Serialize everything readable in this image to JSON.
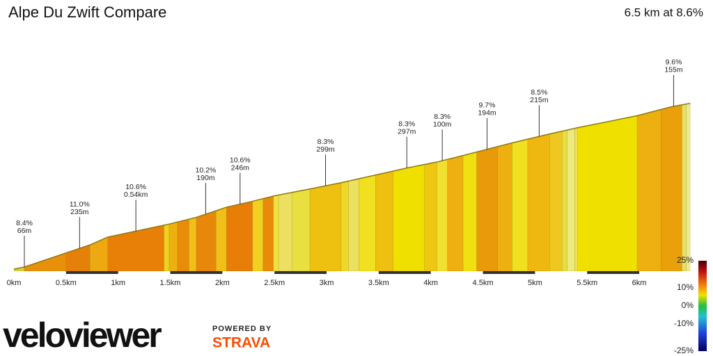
{
  "chart_data": {
    "type": "profile",
    "title": "Alpe Du Zwift Compare",
    "subtitle": "6.5 km at 8.6%",
    "x": [
      0,
      0.1,
      0.73,
      0.9,
      1.47,
      1.74,
      2.04,
      2.28,
      2.5,
      2.84,
      3.14,
      3.77,
      4.07,
      4.31,
      4.78,
      5.14,
      5.41,
      5.98,
      6.31,
      6.45,
      6.49
    ],
    "series": [
      {
        "color": "#8a7a10",
        "values": [
          7,
          14,
          88,
          114,
          156,
          179,
          214,
          233,
          252,
          275,
          296,
          345,
          366,
          387,
          429,
          459,
          480,
          520,
          550,
          559,
          561
        ]
      }
    ],
    "xlim": [
      0,
      6.49
    ],
    "ylim": [
      0,
      600
    ],
    "xticks": [
      {
        "value": 0,
        "label": "0km"
      },
      {
        "value": 0.5,
        "label": "0.5km"
      },
      {
        "value": 1,
        "label": "1km"
      },
      {
        "value": 1.5,
        "label": "1.5km"
      },
      {
        "value": 2,
        "label": "2km"
      },
      {
        "value": 2.5,
        "label": "2.5km"
      },
      {
        "value": 3,
        "label": "3km"
      },
      {
        "value": 3.5,
        "label": "3.5km"
      },
      {
        "value": 4,
        "label": "4km"
      },
      {
        "value": 4.5,
        "label": "4.5km"
      },
      {
        "value": 5,
        "label": "5km"
      },
      {
        "value": 5.5,
        "label": "5.5km"
      },
      {
        "value": 6,
        "label": "6km"
      }
    ],
    "band_edges": [
      0,
      0.1,
      0.5,
      0.73,
      0.9,
      1.44,
      1.49,
      1.57,
      1.68,
      1.75,
      1.94,
      2.04,
      2.29,
      2.39,
      2.49,
      2.54,
      2.67,
      2.84,
      3.14,
      3.21,
      3.31,
      3.47,
      3.64,
      3.94,
      4.06,
      4.16,
      4.31,
      4.44,
      4.64,
      4.78,
      4.93,
      5.14,
      5.26,
      5.31,
      5.38,
      5.41,
      5.98,
      6.21,
      6.41,
      6.45,
      6.49
    ],
    "band_colors": [
      "#d8d040",
      "#e8900a",
      "#e58008",
      "#eea810",
      "#e88008",
      "#f0d020",
      "#eeb010",
      "#e88c0a",
      "#f0c018",
      "#e8880a",
      "#f0c018",
      "#e87d08",
      "#f2d020",
      "#e88a0a",
      "#f0e040",
      "#ece060",
      "#e8e040",
      "#eec010",
      "#f0d828",
      "#ece060",
      "#f0e020",
      "#eec010",
      "#f0e000",
      "#eec810",
      "#f2e030",
      "#eeb010",
      "#f0e010",
      "#e89a0a",
      "#eeb010",
      "#f0e020",
      "#eeb810",
      "#eec820",
      "#eadd40",
      "#eaea80",
      "#eee050",
      "#f0e000",
      "#eeb010",
      "#eaa00a",
      "#e8e060",
      "#eaea90"
    ],
    "annotations": [
      {
        "x": 0.1,
        "lines": [
          "8.4%",
          "66m"
        ]
      },
      {
        "x": 0.63,
        "lines": [
          "11.0%",
          "235m"
        ]
      },
      {
        "x": 1.17,
        "lines": [
          "10.6%",
          "0.54km"
        ]
      },
      {
        "x": 1.84,
        "lines": [
          "10.2%",
          "190m"
        ]
      },
      {
        "x": 2.17,
        "lines": [
          "10.6%",
          "246m"
        ]
      },
      {
        "x": 2.99,
        "lines": [
          "8.3%",
          "299m"
        ]
      },
      {
        "x": 3.77,
        "lines": [
          "8.3%",
          "297m"
        ]
      },
      {
        "x": 4.11,
        "lines": [
          "8.3%",
          "100m"
        ]
      },
      {
        "x": 4.54,
        "lines": [
          "9.7%",
          "194m"
        ]
      },
      {
        "x": 5.04,
        "lines": [
          "8.5%",
          "215m"
        ]
      },
      {
        "x": 6.33,
        "lines": [
          "9.6%",
          "155m"
        ]
      }
    ],
    "gradient_legend": {
      "lim": [
        -25,
        25
      ],
      "ticks": [
        {
          "value": 25,
          "label": "25%"
        },
        {
          "value": 10,
          "label": "10%"
        },
        {
          "value": 0,
          "label": "0%"
        },
        {
          "value": -10,
          "label": "-10%"
        },
        {
          "value": -25,
          "label": "-25%"
        }
      ]
    }
  },
  "branding": {
    "logo": "veloviewer",
    "powered_by": "POWERED BY",
    "partner": "STRAVA"
  }
}
